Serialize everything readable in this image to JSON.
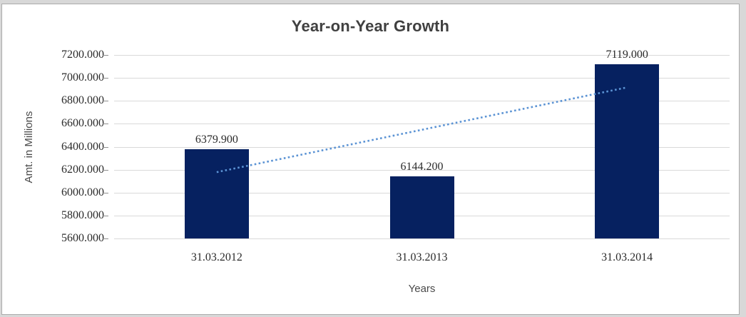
{
  "window": {
    "outer_background": "#d8d8d8",
    "chart_background": "#ffffff",
    "border_color": "#ababab"
  },
  "chart_data": {
    "type": "bar",
    "title": "Year-on-Year Growth",
    "categories": [
      "31.03.2012",
      "31.03.2013",
      "31.03.2014"
    ],
    "values": [
      6379.9,
      6144.2,
      7119.0
    ],
    "value_labels": [
      "6379.900",
      "6144.200",
      "7119.000"
    ],
    "xlabel": "Years",
    "ylabel": "Amt. in Millions",
    "ylim": [
      5600,
      7200
    ],
    "ytick_step": 200,
    "yticks": [
      "7200.000",
      "7000.000",
      "6800.000",
      "6600.000",
      "6400.000",
      "6200.000",
      "6000.000",
      "5800.000",
      "5600.000"
    ],
    "grid": true,
    "legend": "none",
    "bar_color": "#062160",
    "gridline_color": "#d9d9d9",
    "title_color": "#404040",
    "text_color": "#2b2b2b",
    "trendline": {
      "kind": "linear",
      "dash": "dotted",
      "color": "#5b93d4",
      "start_value": 6178.2,
      "end_value": 6917.3
    }
  }
}
